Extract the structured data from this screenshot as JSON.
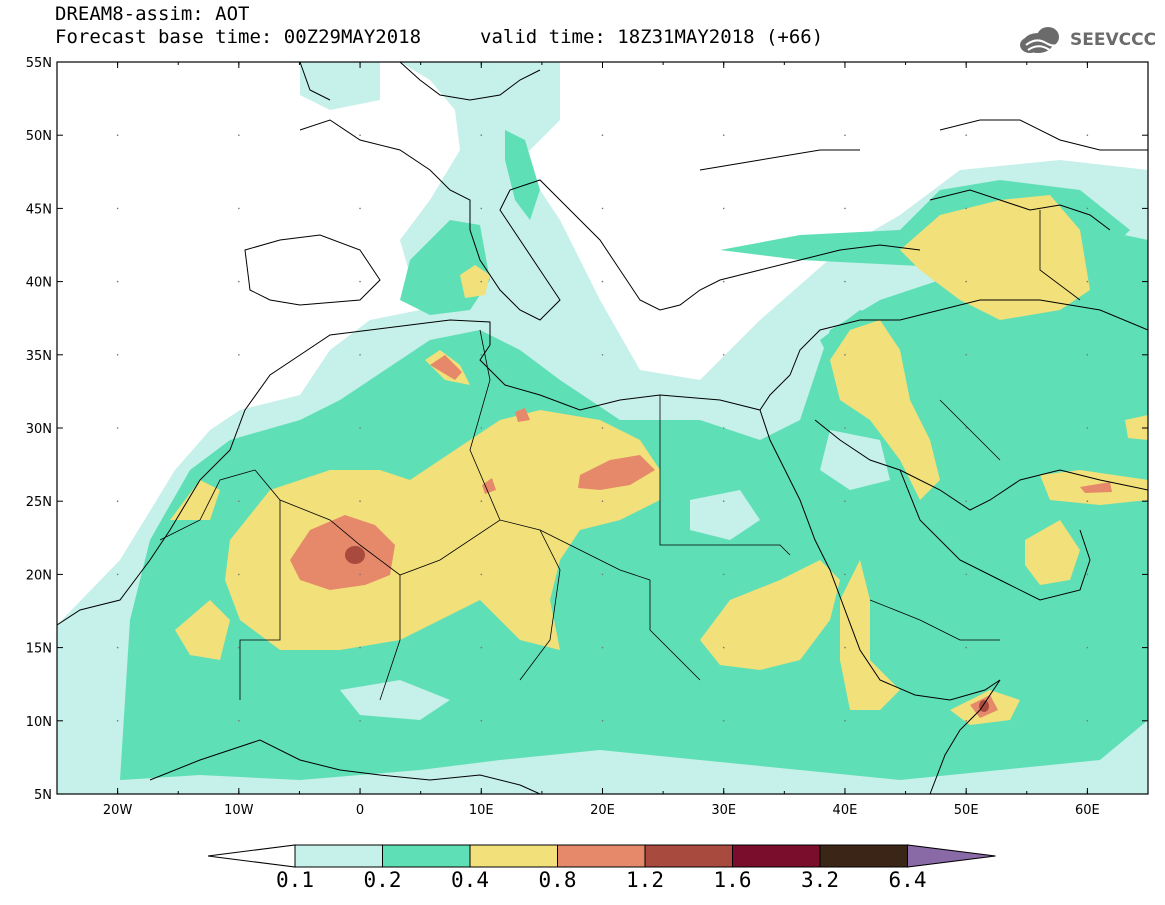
{
  "header": {
    "title": "DREAM8-assim: AOT",
    "base_time": "Forecast base time: 00Z29MAY2018",
    "valid_time": "valid time: 18Z31MAY2018 (+66)"
  },
  "logo": {
    "text": "SEEVCCC",
    "icon": "cloud-icon",
    "color": "#6b6b6b"
  },
  "map": {
    "extent": {
      "lon": [
        -25,
        65
      ],
      "lat": [
        5,
        55
      ]
    },
    "lat_labels": [
      "55N",
      "50N",
      "45N",
      "40N",
      "35N",
      "30N",
      "25N",
      "20N",
      "15N",
      "10N",
      "5N"
    ],
    "lon_labels": [
      "20W",
      "10W",
      "0",
      "10E",
      "20E",
      "30E",
      "40E",
      "50E",
      "60E"
    ],
    "field": "Aerosol optical thickness (dust)"
  },
  "colorbar": {
    "labels": [
      "0.1",
      "0.2",
      "0.4",
      "0.8",
      "1.2",
      "1.6",
      "3.2",
      "6.4"
    ],
    "colors": [
      "#ffffff",
      "#c6f0ea",
      "#5fdfb6",
      "#f2e07a",
      "#e5896a",
      "#a84a3d",
      "#7a0c2c",
      "#3b2516",
      "#8a6aa6"
    ]
  }
}
